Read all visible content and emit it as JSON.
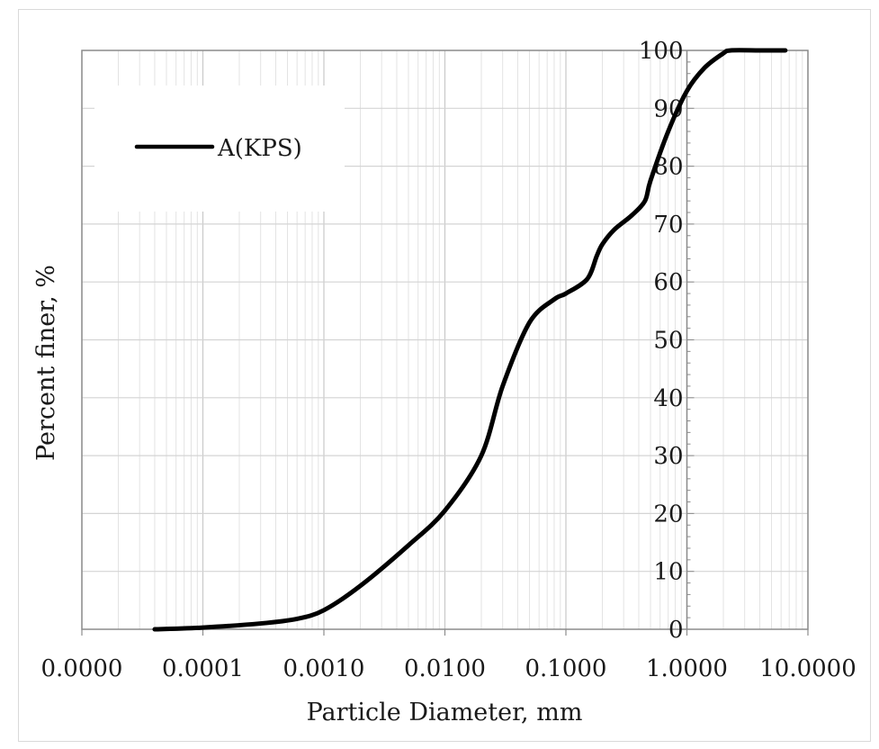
{
  "chart_data": {
    "type": "line",
    "xscale": "log",
    "xlim": [
      1e-05,
      10
    ],
    "ylim": [
      0,
      100
    ],
    "xlabel": "Particle Diameter, mm",
    "ylabel": "Percent finer, %",
    "x_tick_labels": [
      "0.0000",
      "0.0001",
      "0.0010",
      "0.0100",
      "0.1000",
      "1.0000",
      "10.0000"
    ],
    "y_tick_labels": [
      "0",
      "10",
      "20",
      "30",
      "40",
      "50",
      "60",
      "70",
      "80",
      "90",
      "100"
    ],
    "grid": true,
    "legend_position": "top-left",
    "series": [
      {
        "name": "A(KPS)",
        "color": "#000000",
        "x": [
          4e-05,
          0.0001,
          0.0003,
          0.0006,
          0.001,
          0.002,
          0.005,
          0.01,
          0.02,
          0.03,
          0.05,
          0.08,
          0.1,
          0.15,
          0.18,
          0.2,
          0.25,
          0.35,
          0.45,
          0.5,
          0.7,
          1.0,
          1.4,
          2.0,
          2.3,
          4.0,
          6.5
        ],
        "values": [
          0,
          0.3,
          1.0,
          1.8,
          3.3,
          7.5,
          14.5,
          20.5,
          30,
          42,
          53,
          57,
          58,
          60.5,
          64.5,
          66.5,
          69,
          71.5,
          74,
          77.5,
          86,
          93,
          97,
          99.5,
          100,
          100,
          100
        ]
      }
    ]
  }
}
